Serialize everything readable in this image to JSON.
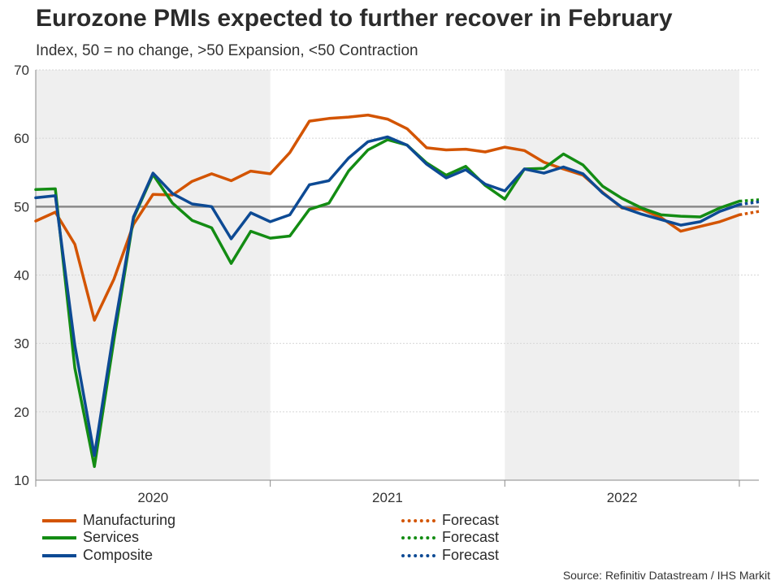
{
  "chart_data": {
    "type": "line",
    "title": "Eurozone PMIs expected to further recover in February",
    "subtitle": "Index, 50 = no change, >50 Expansion, <50 Contraction",
    "ylim": [
      10,
      70
    ],
    "yticks": [
      10,
      20,
      30,
      40,
      50,
      60,
      70
    ],
    "reference_line": 50,
    "x_start": "2020-01",
    "x_end": "2023-02",
    "year_labels": [
      "2020",
      "2021",
      "2022"
    ],
    "shaded_years": [
      "2020",
      "2022"
    ],
    "series": [
      {
        "name": "Manufacturing",
        "color": "#d35400",
        "values": [
          47.9,
          49.2,
          44.5,
          33.4,
          39.4,
          47.4,
          51.8,
          51.7,
          53.7,
          54.8,
          53.8,
          55.2,
          54.8,
          57.9,
          62.5,
          62.9,
          63.1,
          63.4,
          62.8,
          61.4,
          58.6,
          58.3,
          58.4,
          58.0,
          58.7,
          58.2,
          56.5,
          55.5,
          54.6,
          52.1,
          49.8,
          49.6,
          48.4,
          46.4,
          47.1,
          47.8,
          48.8
        ],
        "forecast": [
          48.8,
          49.3
        ]
      },
      {
        "name": "Services",
        "color": "#138c13",
        "values": [
          52.5,
          52.6,
          26.4,
          12.0,
          30.5,
          48.3,
          54.7,
          50.5,
          48.0,
          46.9,
          41.7,
          46.4,
          45.4,
          45.7,
          49.6,
          50.5,
          55.2,
          58.3,
          59.8,
          59.0,
          56.4,
          54.6,
          55.9,
          53.1,
          51.1,
          55.5,
          55.6,
          57.7,
          56.1,
          53.0,
          51.2,
          49.8,
          48.8,
          48.6,
          48.5,
          49.8,
          50.8
        ],
        "forecast": [
          50.8,
          51.0
        ]
      },
      {
        "name": "Composite",
        "color": "#0d4a94",
        "values": [
          51.3,
          51.6,
          29.7,
          13.6,
          31.9,
          48.5,
          54.9,
          51.9,
          50.4,
          50.0,
          45.3,
          49.1,
          47.8,
          48.8,
          53.2,
          53.8,
          57.1,
          59.5,
          60.2,
          59.0,
          56.2,
          54.2,
          55.4,
          53.3,
          52.3,
          55.5,
          54.9,
          55.8,
          54.8,
          52.0,
          49.9,
          48.9,
          48.1,
          47.3,
          47.8,
          49.3,
          50.3
        ],
        "forecast": [
          50.3,
          50.7
        ]
      }
    ]
  },
  "legend": {
    "manufacturing": "Manufacturing",
    "services": "Services",
    "composite": "Composite",
    "forecast_manufacturing": "Forecast",
    "forecast_services": "Forecast",
    "forecast_composite": "Forecast"
  },
  "source": "Source: Refinitiv Datastream / IHS Markit"
}
